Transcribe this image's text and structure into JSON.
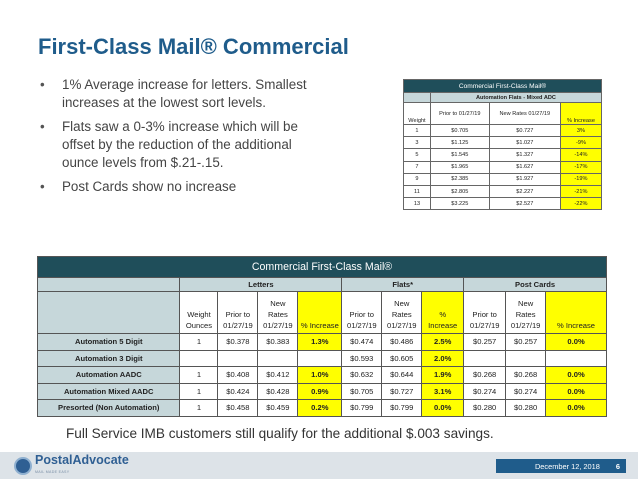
{
  "title": "First-Class Mail® Commercial",
  "bullets": [
    "1% Average increase for letters.  Smallest increases at the lowest sort levels.",
    "Flats saw a 0-3% increase which will be offset by the reduction of the additional ounce levels from $.21-.15.",
    "Post Cards show no increase"
  ],
  "small_table": {
    "title": "Commercial First-Class Mail®",
    "subtitle": "Automation Flats - Mixed ADC",
    "col_weight": "Weight",
    "col_prior": "Prior to 01/27/19",
    "col_new": "New Rates 01/27/19",
    "col_pct": "% Increase",
    "rows": [
      {
        "weight": "1",
        "prior": "$0.705",
        "new": "$0.727",
        "pct": "3%"
      },
      {
        "weight": "3",
        "prior": "$1.125",
        "new": "$1.027",
        "pct": "-9%"
      },
      {
        "weight": "5",
        "prior": "$1.545",
        "new": "$1.327",
        "pct": "-14%"
      },
      {
        "weight": "7",
        "prior": "$1.965",
        "new": "$1.627",
        "pct": "-17%"
      },
      {
        "weight": "9",
        "prior": "$2.385",
        "new": "$1.927",
        "pct": "-19%"
      },
      {
        "weight": "11",
        "prior": "$2.805",
        "new": "$2.227",
        "pct": "-21%"
      },
      {
        "weight": "13",
        "prior": "$3.225",
        "new": "$2.527",
        "pct": "-22%"
      }
    ]
  },
  "big_table": {
    "title": "Commercial First-Class Mail®",
    "groups": {
      "letters": "Letters",
      "flats": "Flats*",
      "postcards": "Post Cards"
    },
    "headers": {
      "weight": "Weight Ounces",
      "prior": "Prior to 01/27/19",
      "new_letters": "New Rates 01/27/19",
      "pct_letters": "% Increase",
      "new": "New Rates 01/27/19",
      "pct": "% Increase"
    },
    "rows": [
      {
        "name": "Automation 5 Digit",
        "weight": "1",
        "l_prior": "$0.378",
        "l_new": "$0.383",
        "l_pct": "1.3%",
        "f_prior": "$0.474",
        "f_new": "$0.486",
        "f_pct": "2.5%",
        "p_prior": "$0.257",
        "p_new": "$0.257",
        "p_pct": "0.0%"
      },
      {
        "name": "Automation 3 Digit",
        "weight": "",
        "l_prior": "",
        "l_new": "",
        "l_pct": "",
        "f_prior": "$0.593",
        "f_new": "$0.605",
        "f_pct": "2.0%",
        "p_prior": "",
        "p_new": "",
        "p_pct": ""
      },
      {
        "name": "Automation AADC",
        "weight": "1",
        "l_prior": "$0.408",
        "l_new": "$0.412",
        "l_pct": "1.0%",
        "f_prior": "$0.632",
        "f_new": "$0.644",
        "f_pct": "1.9%",
        "p_prior": "$0.268",
        "p_new": "$0.268",
        "p_pct": "0.0%"
      },
      {
        "name": "Automation Mixed AADC",
        "weight": "1",
        "l_prior": "$0.424",
        "l_new": "$0.428",
        "l_pct": "0.9%",
        "f_prior": "$0.705",
        "f_new": "$0.727",
        "f_pct": "3.1%",
        "p_prior": "$0.274",
        "p_new": "$0.274",
        "p_pct": "0.0%"
      },
      {
        "name": "Presorted (Non Automation)",
        "weight": "1",
        "l_prior": "$0.458",
        "l_new": "$0.459",
        "l_pct": "0.2%",
        "f_prior": "$0.799",
        "f_new": "$0.799",
        "f_pct": "0.0%",
        "p_prior": "$0.280",
        "p_new": "$0.280",
        "p_pct": "0.0%"
      }
    ]
  },
  "note": "Full Service IMB customers still qualify for the additional $.003 savings.",
  "footer": {
    "logo_name": "PostalAdvocate",
    "logo_tagline": "MAIL MADE EASY",
    "date": "December 12, 2018",
    "page": "6"
  },
  "colors": {
    "title": "#1f5c8b",
    "table_header": "#1f4e5a",
    "table_subheader": "#c6d7da",
    "highlight": "#ffff00"
  }
}
